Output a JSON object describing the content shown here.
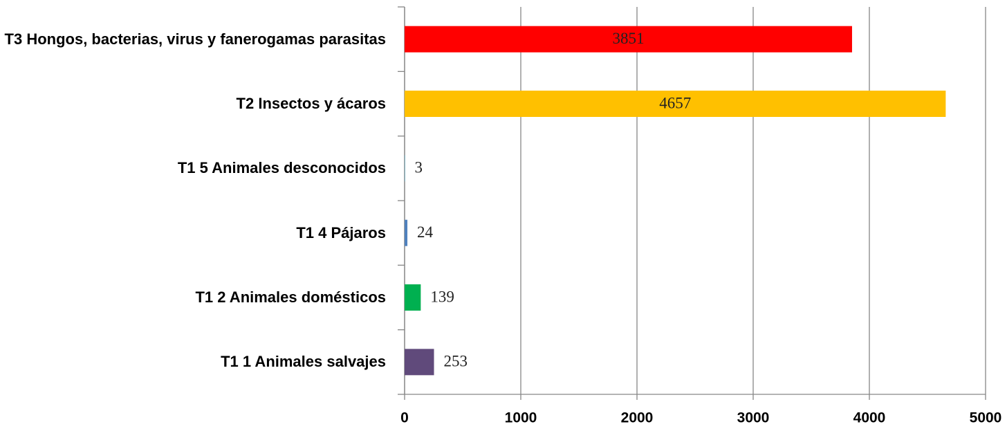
{
  "chart_data": {
    "type": "bar",
    "orientation": "horizontal",
    "categories": [
      "T3 Hongos, bacterias, virus y fanerogamas parasitas",
      "T2 Insectos y ácaros",
      "T1 5 Animales desconocidos",
      "T1 4 Pájaros",
      "T1 2 Animales domésticos",
      "T1 1 Animales salvajes"
    ],
    "values": [
      3851,
      4657,
      3,
      24,
      139,
      253
    ],
    "colors": [
      "#ff0000",
      "#ffc000",
      "#4bacc6",
      "#4f81bd",
      "#00b050",
      "#604a7b"
    ],
    "xlim": [
      0,
      5000
    ],
    "xticks": [
      0,
      1000,
      2000,
      3000,
      4000,
      5000
    ],
    "grid": true
  }
}
